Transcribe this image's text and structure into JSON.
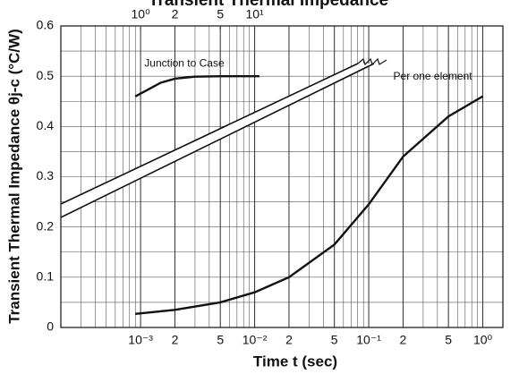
{
  "chart_data": {
    "type": "line",
    "title": "Transient Thermal Impedance",
    "x_label": "Time t (sec)",
    "y_label": "Transient Thermal Impedance θj-c (°C/W)",
    "xscale": "log",
    "xlim": [
      0.0002,
      1.5
    ],
    "xticks": [
      {
        "value": 0.001,
        "label": "10⁻³"
      },
      {
        "value": 0.002,
        "label": "2"
      },
      {
        "value": 0.005,
        "label": "5"
      },
      {
        "value": 0.01,
        "label": "10⁻²"
      },
      {
        "value": 0.02,
        "label": "2"
      },
      {
        "value": 0.05,
        "label": "5"
      },
      {
        "value": 0.1,
        "label": "10⁻¹"
      },
      {
        "value": 0.2,
        "label": "2"
      },
      {
        "value": 0.5,
        "label": "5"
      },
      {
        "value": 1,
        "label": "10⁰"
      }
    ],
    "x2lim": [
      0.2,
      1500
    ],
    "x2ticks": [
      {
        "value": 1,
        "label": "10⁰"
      },
      2,
      5,
      {
        "value": 10,
        "label": "10¹"
      }
    ],
    "ylim": [
      0,
      0.6
    ],
    "yticks": [
      0,
      0.1,
      0.2,
      0.3,
      0.4,
      0.5,
      0.6
    ],
    "grid": true,
    "series": [
      {
        "name": "Per one element",
        "color": "#111111",
        "x": [
          0.0009,
          0.002,
          0.005,
          0.01,
          0.02,
          0.05,
          0.1,
          0.2,
          0.5,
          1
        ],
        "values": [
          0.027,
          0.035,
          0.05,
          0.07,
          0.1,
          0.165,
          0.245,
          0.34,
          0.42,
          0.46
        ]
      },
      {
        "name": "Junction to Case",
        "color": "#111111",
        "axis": "x2",
        "x": [
          0.9,
          1.2,
          1.5,
          2,
          3,
          5,
          11
        ],
        "values": [
          0.46,
          0.475,
          0.487,
          0.495,
          0.499,
          0.5,
          0.5
        ]
      }
    ]
  }
}
